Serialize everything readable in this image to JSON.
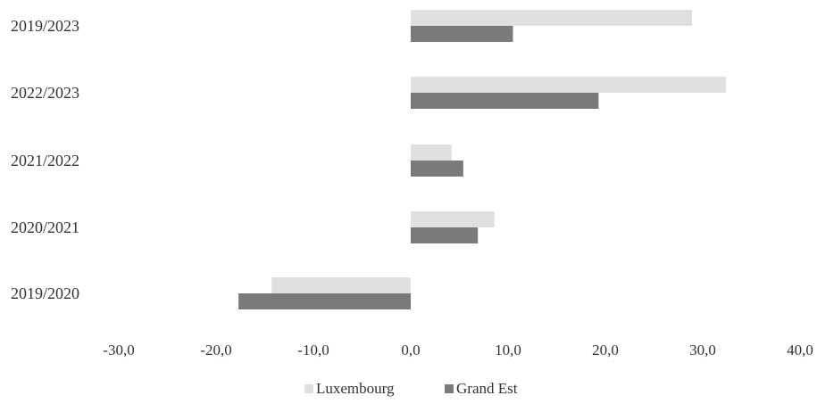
{
  "chart_data": {
    "type": "bar",
    "orientation": "horizontal",
    "categories": [
      "2019/2023",
      "2022/2023",
      "2021/2022",
      "2020/2021",
      "2019/2020"
    ],
    "series": [
      {
        "name": "Luxembourg",
        "color": "#e0e0e0",
        "values": [
          28.9,
          32.4,
          4.2,
          8.6,
          -14.3
        ]
      },
      {
        "name": "Grand Est",
        "color": "#7a7a7a",
        "values": [
          10.5,
          19.3,
          5.4,
          6.9,
          -17.7
        ]
      }
    ],
    "xticks": [
      "-30,0",
      "-20,0",
      "-10,0",
      "0,0",
      "10,0",
      "20,0",
      "30,0",
      "40,0"
    ],
    "xlim": [
      -30,
      40
    ],
    "grid": false,
    "legend": "bottom",
    "title": "",
    "xlabel": "",
    "ylabel": ""
  }
}
